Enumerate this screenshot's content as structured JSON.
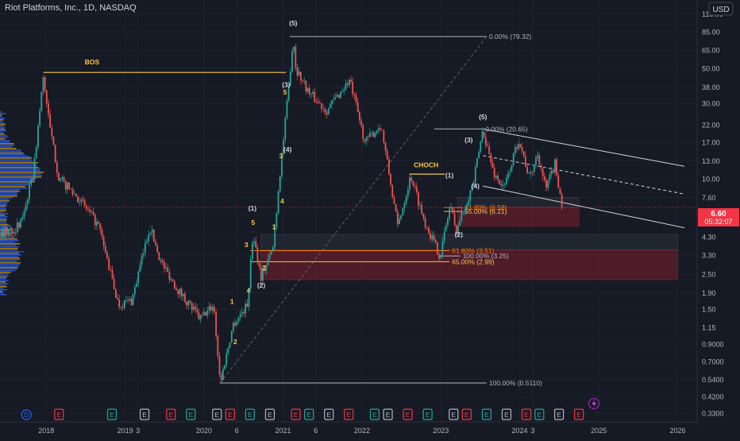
{
  "header": {
    "title": "Riot Platforms, Inc., 1D, NASDAQ",
    "currency_button": "USD"
  },
  "price_badge": {
    "price": "6.60",
    "countdown": "05:32:07",
    "color": "#f23645"
  },
  "colors": {
    "background": "#161a25",
    "up": "#26a69a",
    "down": "#ef5350",
    "fib_line": "#b2b5be",
    "fib_gold": "#f7c948",
    "fib_orange": "#f57c00",
    "zone_red": "#7a1f2b",
    "channel": "#d1d4dc",
    "volume_blue": "#2962ff",
    "volume_gold": "#d4a017"
  },
  "chart_data": {
    "type": "line",
    "title": "Riot Platforms, Inc., 1D, NASDAQ",
    "xlabel": "",
    "ylabel": "",
    "y_scale": "log",
    "ylim": [
      0.29,
      135
    ],
    "xlim": [
      "2017-06-01",
      "2026-04-01"
    ],
    "y_ticks": [
      "110.00",
      "85.00",
      "65.00",
      "50.00",
      "38.00",
      "30.00",
      "22.00",
      "17.00",
      "13.00",
      "10.00",
      "7.60",
      "5.90",
      "4.30",
      "3.30",
      "2.50",
      "1.90",
      "1.50",
      "1.15",
      "0.9000",
      "0.7000",
      "0.5400",
      "0.4200",
      "0.3300"
    ],
    "x_ticks": [
      {
        "label": "2018",
        "date": "2018-01-01"
      },
      {
        "label": "2019",
        "date": "2019-01-01"
      },
      {
        "label": "3",
        "date": "2019-03-01"
      },
      {
        "label": "2020",
        "date": "2020-01-01"
      },
      {
        "label": "6",
        "date": "2020-06-01"
      },
      {
        "label": "2021",
        "date": "2021-01-01"
      },
      {
        "label": "6",
        "date": "2021-06-01"
      },
      {
        "label": "2022",
        "date": "2022-01-01"
      },
      {
        "label": "2023",
        "date": "2023-01-01"
      },
      {
        "label": "2024",
        "date": "2024-01-01"
      },
      {
        "label": "3",
        "date": "2024-03-01"
      },
      {
        "label": "2025",
        "date": "2025-01-01"
      },
      {
        "label": "2026",
        "date": "2026-01-01"
      }
    ],
    "series": [
      {
        "values": [
          {
            "x": "2017-06-01",
            "y": 4.5
          },
          {
            "x": "2017-09-01",
            "y": 5.0
          },
          {
            "x": "2017-11-01",
            "y": 10.5
          },
          {
            "x": "2017-12-19",
            "y": 45.0
          },
          {
            "x": "2018-01-15",
            "y": 22.0
          },
          {
            "x": "2018-03-01",
            "y": 10.0
          },
          {
            "x": "2018-06-01",
            "y": 7.5
          },
          {
            "x": "2018-09-01",
            "y": 5.0
          },
          {
            "x": "2018-12-01",
            "y": 1.6
          },
          {
            "x": "2019-02-01",
            "y": 1.7
          },
          {
            "x": "2019-04-25",
            "y": 5.0
          },
          {
            "x": "2019-06-15",
            "y": 3.0
          },
          {
            "x": "2019-09-01",
            "y": 2.0
          },
          {
            "x": "2019-12-15",
            "y": 1.3
          },
          {
            "x": "2020-02-15",
            "y": 1.6
          },
          {
            "x": "2020-03-16",
            "y": 0.511
          },
          {
            "x": "2020-05-15",
            "y": 1.2
          },
          {
            "x": "2020-07-20",
            "y": 1.6
          },
          {
            "x": "2020-08-15",
            "y": 4.6
          },
          {
            "x": "2020-09-20",
            "y": 2.4
          },
          {
            "x": "2020-11-15",
            "y": 3.6
          },
          {
            "x": "2020-12-15",
            "y": 10.0
          },
          {
            "x": "2021-01-20",
            "y": 30.0
          },
          {
            "x": "2021-02-17",
            "y": 79.32
          },
          {
            "x": "2021-03-01",
            "y": 50.0
          },
          {
            "x": "2021-05-01",
            "y": 35.0
          },
          {
            "x": "2021-07-20",
            "y": 27.0
          },
          {
            "x": "2021-11-05",
            "y": 42.0
          },
          {
            "x": "2022-01-15",
            "y": 17.0
          },
          {
            "x": "2022-03-30",
            "y": 22.0
          },
          {
            "x": "2022-06-15",
            "y": 5.0
          },
          {
            "x": "2022-08-15",
            "y": 10.5
          },
          {
            "x": "2022-10-15",
            "y": 5.5
          },
          {
            "x": "2022-12-28",
            "y": 3.25
          },
          {
            "x": "2023-02-15",
            "y": 7.0
          },
          {
            "x": "2023-03-10",
            "y": 4.6
          },
          {
            "x": "2023-06-01",
            "y": 9.5
          },
          {
            "x": "2023-07-15",
            "y": 20.65
          },
          {
            "x": "2023-09-01",
            "y": 11.0
          },
          {
            "x": "2023-10-20",
            "y": 8.6
          },
          {
            "x": "2023-12-28",
            "y": 18.0
          },
          {
            "x": "2024-02-15",
            "y": 10.0
          },
          {
            "x": "2024-03-25",
            "y": 14.5
          },
          {
            "x": "2024-05-01",
            "y": 8.5
          },
          {
            "x": "2024-06-12",
            "y": 12.5
          },
          {
            "x": "2024-07-17",
            "y": 6.6
          }
        ]
      }
    ],
    "fib_levels": [
      {
        "label": "0.00% (79.32)",
        "y": 79.32,
        "from": "2021-02-01",
        "to": "2023-08-01",
        "color": "#b2b5be"
      },
      {
        "label": "100.00% (0.5110)",
        "y": 0.511,
        "from": "2020-03-16",
        "to": "2023-08-01",
        "color": "#b2b5be"
      },
      {
        "label": "61.80% (3.51)",
        "y": 3.51,
        "from": "2020-08-01",
        "to": "2023-02-10",
        "color": "#f57c00"
      },
      {
        "label": "65.00% (2.99)",
        "y": 2.99,
        "from": "2020-08-01",
        "to": "2023-02-10",
        "color": "#f7c948"
      },
      {
        "label": "0.00% (20.65)",
        "y": 20.65,
        "from": "2022-12-01",
        "to": "2023-07-15",
        "color": "#b2b5be"
      },
      {
        "label": "100.00% (3.25)",
        "y": 3.25,
        "from": "2022-12-28",
        "to": "2023-04-01",
        "color": "#b2b5be"
      },
      {
        "label": "61.80% (6.58)",
        "y": 6.58,
        "from": "2023-01-15",
        "to": "2023-04-10",
        "color": "#f57c00"
      },
      {
        "label": "65.00% (6.21)",
        "y": 6.21,
        "from": "2023-01-15",
        "to": "2023-04-10",
        "color": "#f7c948"
      }
    ],
    "annotations": [
      {
        "text": "BOS",
        "x": "2018-08-01",
        "y": 53.0,
        "color": "#f7c948"
      },
      {
        "text": "CHOCH",
        "x": "2022-10-25",
        "y": 11.8,
        "color": "#f7c948"
      },
      {
        "text": "(5)",
        "x": "2021-02-17",
        "y": 93.0,
        "color": "#d1d4dc"
      },
      {
        "text": "(3)",
        "x": "2021-01-15",
        "y": 38.0,
        "color": "#d1d4dc"
      },
      {
        "text": "(4)",
        "x": "2021-01-22",
        "y": 14.8,
        "color": "#d1d4dc"
      },
      {
        "text": "(1)",
        "x": "2020-08-12",
        "y": 6.3,
        "color": "#d1d4dc"
      },
      {
        "text": "(2)",
        "x": "2020-09-22",
        "y": 2.05,
        "color": "#d1d4dc"
      },
      {
        "text": "5",
        "x": "2021-01-10",
        "y": 34.0,
        "color": "#f7c948"
      },
      {
        "text": "3",
        "x": "2020-12-22",
        "y": 13.5,
        "color": "#f7c948"
      },
      {
        "text": "4",
        "x": "2020-12-28",
        "y": 7.0,
        "color": "#f7c948"
      },
      {
        "text": "1",
        "x": "2020-11-20",
        "y": 4.8,
        "color": "#f7c948"
      },
      {
        "text": "5",
        "x": "2020-08-15",
        "y": 5.1,
        "color": "#f7c948"
      },
      {
        "text": "3",
        "x": "2020-07-15",
        "y": 3.7,
        "color": "#f7c948"
      },
      {
        "text": "4",
        "x": "2020-07-25",
        "y": 1.9,
        "color": "#f7c948"
      },
      {
        "text": "2",
        "x": "2020-10-05",
        "y": 2.65,
        "color": "#f7c948"
      },
      {
        "text": "1",
        "x": "2020-05-10",
        "y": 1.62,
        "color": "#f7c948"
      },
      {
        "text": "2",
        "x": "2020-05-25",
        "y": 0.9,
        "color": "#f7c948"
      },
      {
        "text": "(5)",
        "x": "2023-07-15",
        "y": 23.8,
        "color": "#d1d4dc"
      },
      {
        "text": "(3)",
        "x": "2023-05-10",
        "y": 17.0,
        "color": "#d1d4dc"
      },
      {
        "text": "(4)",
        "x": "2023-06-10",
        "y": 8.7,
        "color": "#d1d4dc"
      },
      {
        "text": "(1)",
        "x": "2023-02-10",
        "y": 10.2,
        "color": "#d1d4dc"
      },
      {
        "text": "(2)",
        "x": "2023-03-25",
        "y": 4.3,
        "color": "#d1d4dc"
      }
    ],
    "horizontal_lines": [
      {
        "label": "BOS",
        "y": 47.0,
        "from": "2017-12-19",
        "to": "2021-01-15",
        "color": "#f7c948"
      },
      {
        "label": "CHOCH",
        "y": 10.7,
        "from": "2022-08-10",
        "to": "2023-01-20",
        "color": "#f7c948"
      }
    ],
    "zones": [
      {
        "y_top": 4.45,
        "y_bottom": 3.55,
        "from": "2020-09-20",
        "to": "2026-01-01",
        "color": "#2a2e39"
      },
      {
        "y_top": 3.55,
        "y_bottom": 2.3,
        "from": "2020-09-20",
        "to": "2026-01-01",
        "color": "#7a1f2b"
      },
      {
        "y_top": 7.6,
        "y_bottom": 6.6,
        "from": "2023-03-20",
        "to": "2024-10-01",
        "color": "#2a2e39"
      },
      {
        "y_top": 6.6,
        "y_bottom": 5.0,
        "from": "2023-03-20",
        "to": "2024-10-01",
        "color": "#7a1f2b"
      }
    ],
    "channel_lines": [
      {
        "from": {
          "x": "2023-07-15",
          "y": 20.65
        },
        "to": {
          "x": "2026-02-01",
          "y": 12.0
        },
        "style": "solid"
      },
      {
        "from": {
          "x": "2023-07-15",
          "y": 14.0
        },
        "to": {
          "x": "2026-02-01",
          "y": 8.0
        },
        "style": "dashed"
      },
      {
        "from": {
          "x": "2023-07-15",
          "y": 9.0
        },
        "to": {
          "x": "2026-02-01",
          "y": 4.9
        },
        "style": "solid"
      },
      {
        "from": {
          "x": "2020-03-16",
          "y": 0.511
        },
        "to": {
          "x": "2023-08-01",
          "y": 79.32
        },
        "style": "dashed"
      }
    ],
    "event_markers": {
      "E": [
        "2018-03-01",
        "2018-11-01",
        "2019-04-01",
        "2019-08-01",
        "2019-11-01",
        "2020-03-01",
        "2020-05-01",
        "2020-08-01",
        "2020-11-01",
        "2021-03-01",
        "2021-05-01",
        "2021-08-01",
        "2021-11-01",
        "2022-03-01",
        "2022-05-01",
        "2022-08-01",
        "2022-11-01",
        "2023-03-01",
        "2023-05-01",
        "2023-08-01",
        "2023-11-01",
        "2024-02-01",
        "2024-04-01",
        "2024-07-01",
        "2024-10-01"
      ],
      "D": [
        "2017-10-01"
      ]
    }
  }
}
